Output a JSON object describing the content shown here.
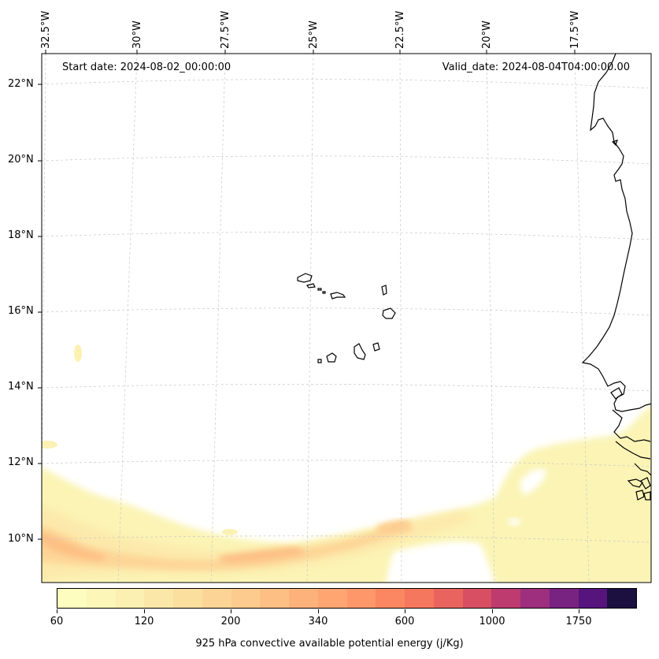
{
  "map": {
    "lon_labels": [
      "32.5°W",
      "30°W",
      "27.5°W",
      "25°W",
      "22.5°W",
      "20°W",
      "17.5°W"
    ],
    "lat_labels": [
      "22°N",
      "20°N",
      "18°N",
      "16°N",
      "14°N",
      "12°N",
      "10°N"
    ],
    "start_date": "Start date: 2024-08-02_00:00:00",
    "valid_date": "Valid_date: 2024-08-04T04:00:00.00"
  },
  "colorbar": {
    "colors": [
      "#fcfdbf",
      "#fcf6b9",
      "#fbefb1",
      "#fbe7a8",
      "#fbdf9f",
      "#fcd596",
      "#fdcb8d",
      "#fdbf84",
      "#feb27b",
      "#fea572",
      "#fe9769",
      "#fb8762",
      "#f5775e",
      "#ea645f",
      "#d84f63",
      "#bd3b6e",
      "#9e2e7e",
      "#782281",
      "#56147d",
      "#1b1040"
    ],
    "tick_labels": [
      "60",
      "120",
      "200",
      "340",
      "600",
      "1000",
      "1750"
    ],
    "title": "925 hPa convective available potential energy (j/Kg)"
  }
}
